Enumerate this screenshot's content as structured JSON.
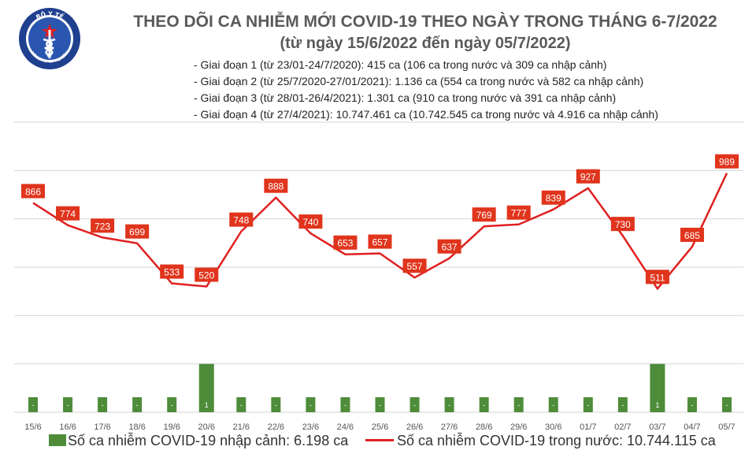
{
  "logo": {
    "top_text": "BỘ Y TẾ",
    "bottom_text": "MINISTRY OF HEALTH"
  },
  "header": {
    "title_line1": "THEO DÕI CA NHIỄM MỚI COVID-19 THEO NGÀY TRONG THÁNG 6-7/2022",
    "title_line2": "(từ ngày 15/6/2022 đến ngày 05/7/2022)"
  },
  "stages": [
    "- Giai đoạn 1 (từ 23/01-24/7/2020): 415 ca (106 ca trong nước và 309 ca nhập cảnh)",
    "- Giai đoạn 2 (từ 25/7/2020-27/01/2021): 1.136 ca (554 ca trong nước và 582 ca nhập cảnh)",
    "- Giai đoạn 3 (từ 28/01-26/4/2021): 1.301 ca (910 ca trong nước và 391 ca nhập cảnh)",
    "- Giai đoạn 4 (từ 27/4/2021): 10.747.461 ca (10.742.545 ca trong nước và 4.916 ca nhập cảnh)"
  ],
  "legend": {
    "bar": "Số ca nhiễm COVID-19 nhập cảnh: 6.198 ca",
    "line": "Số ca nhiễm COVID-19 trong nước: 10.744.115 ca"
  },
  "colors": {
    "bar": "#4e8c3a",
    "line": "#e02020",
    "label_bg": "#e0341c",
    "grid": "#d6d6d6",
    "axis_text": "#555555"
  },
  "chart_data": {
    "type": "bar+line",
    "categories": [
      "15/6",
      "16/6",
      "17/6",
      "18/6",
      "19/6",
      "20/6",
      "21/6",
      "22/6",
      "23/6",
      "24/6",
      "25/6",
      "26/6",
      "27/6",
      "28/6",
      "29/6",
      "30/6",
      "01/7",
      "02/7",
      "03/7",
      "04/7",
      "05/7"
    ],
    "series": [
      {
        "name": "Số ca nhiễm COVID-19 nhập cảnh: 6.198 ca",
        "type": "bar",
        "axis": "left",
        "values": [
          0,
          0,
          0,
          0,
          0,
          1,
          0,
          0,
          0,
          0,
          0,
          0,
          0,
          0,
          0,
          0,
          0,
          0,
          1,
          0,
          0
        ],
        "labels": [
          "-",
          "-",
          "-",
          "-",
          "-",
          "1",
          "-",
          "-",
          "-",
          "-",
          "-",
          "-",
          "-",
          "-",
          "-",
          "-",
          "-",
          "-",
          "1",
          "-",
          "-"
        ]
      },
      {
        "name": "Số ca nhiễm COVID-19 trong nước: 10.744.115 ca",
        "type": "line",
        "axis": "right",
        "values": [
          866,
          774,
          723,
          699,
          533,
          520,
          748,
          888,
          740,
          653,
          657,
          557,
          637,
          769,
          777,
          839,
          927,
          730,
          511,
          685,
          989
        ]
      }
    ],
    "left_axis": {
      "ylim": [
        0,
        6
      ]
    },
    "right_axis": {
      "ylim": [
        0,
        1200
      ]
    },
    "grid": true,
    "legend_position": "bottom"
  }
}
